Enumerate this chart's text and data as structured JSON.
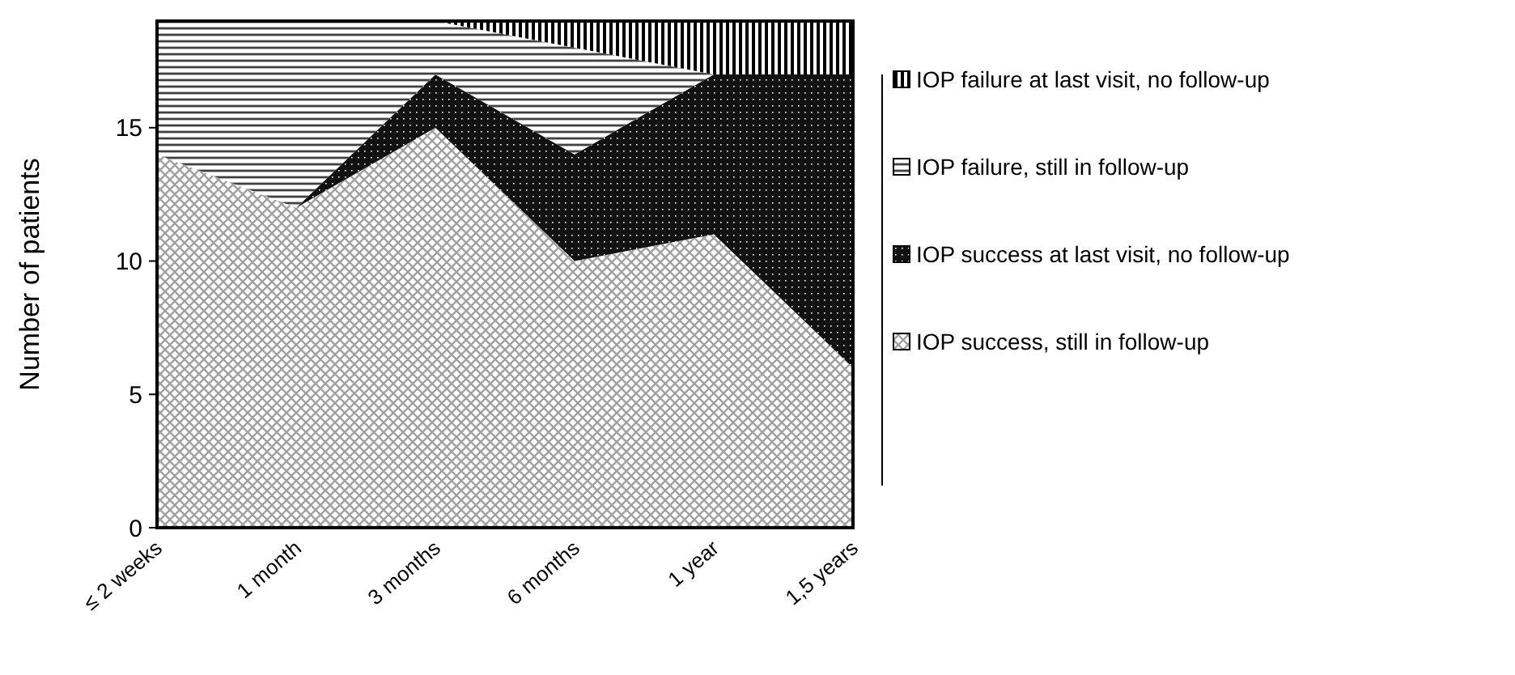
{
  "chart_data": {
    "type": "area",
    "stacked": true,
    "ylabel": "Number of patients",
    "categories": [
      "≤ 2 weeks",
      "1 month",
      "3 months",
      "6 months",
      "1 year",
      "1,5 years"
    ],
    "ylim": [
      0,
      19
    ],
    "yticks": [
      0,
      5,
      10,
      15
    ],
    "legend": "right",
    "grid": false,
    "series": [
      {
        "name": "IOP success, still in follow-up",
        "color": "#a0a0a0",
        "values": [
          14,
          12,
          15,
          10,
          11,
          6
        ]
      },
      {
        "name": "IOP success at last visit, no follow-up",
        "color": "#111111",
        "values": [
          0,
          0,
          2,
          4,
          6,
          11
        ]
      },
      {
        "name": "IOP failure, still in follow-up",
        "color": "#404040",
        "values": [
          5,
          7,
          2,
          4,
          0,
          0
        ]
      },
      {
        "name": "IOP failure at last visit, no follow-up",
        "color": "#000000",
        "values": [
          0,
          0,
          0,
          1,
          2,
          2
        ]
      }
    ]
  }
}
